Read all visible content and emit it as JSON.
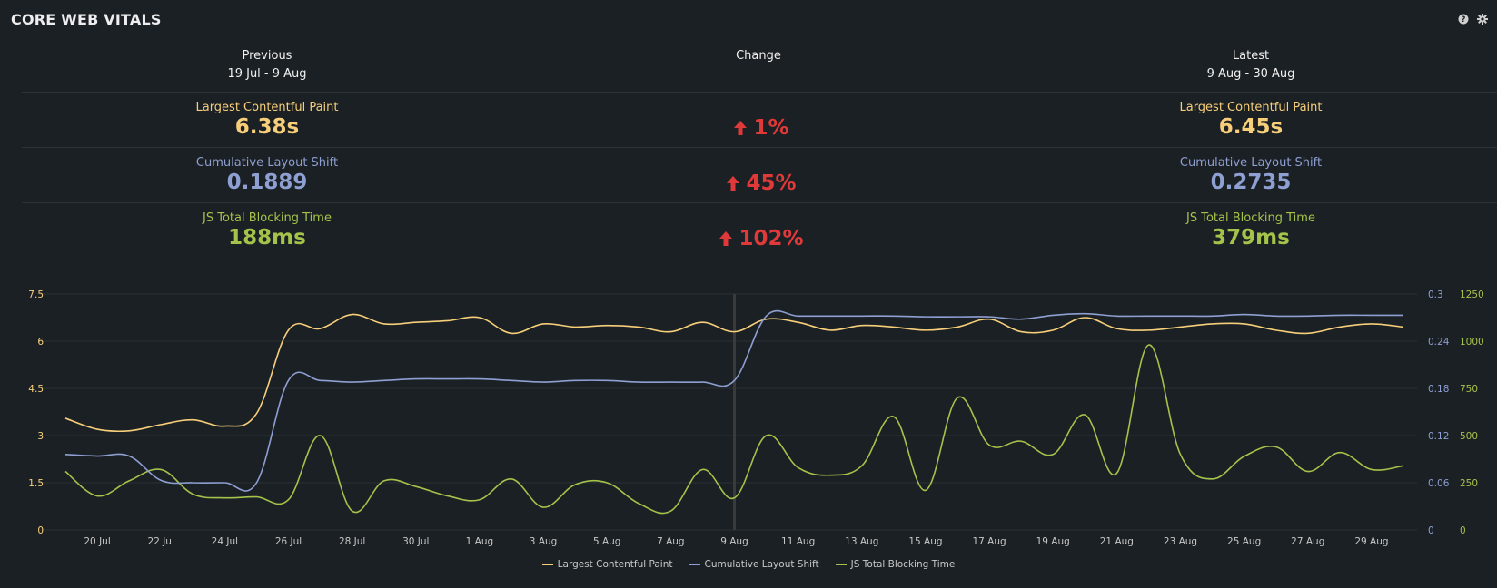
{
  "header": {
    "title": "CORE WEB VITALS",
    "icons": [
      "help-icon",
      "gear-icon"
    ]
  },
  "columns": {
    "previous": {
      "label": "Previous",
      "range": "19 Jul - 9 Aug"
    },
    "change": {
      "label": "Change"
    },
    "latest": {
      "label": "Latest",
      "range": "9 Aug - 30 Aug"
    }
  },
  "metrics": [
    {
      "label": "Largest Contentful Paint",
      "previous": "6.38s",
      "latest": "6.45s",
      "change": "1%",
      "color": "#f7cf7a"
    },
    {
      "label": "Cumulative Layout Shift",
      "previous": "0.1889",
      "latest": "0.2735",
      "change": "45%",
      "color": "#8e9fd2"
    },
    {
      "label": "JS Total Blocking Time",
      "previous": "188ms",
      "latest": "379ms",
      "change": "102%",
      "color": "#a5c24a"
    }
  ],
  "colors": {
    "background": "#1b2024",
    "change": "#e0393a",
    "marker": "#3a3a3a",
    "grid": "#2a3035"
  },
  "chart_data": {
    "type": "line",
    "x": [
      "19 Jul",
      "20 Jul",
      "21 Jul",
      "22 Jul",
      "23 Jul",
      "24 Jul",
      "25 Jul",
      "26 Jul",
      "27 Jul",
      "28 Jul",
      "29 Jul",
      "30 Jul",
      "31 Jul",
      "1 Aug",
      "2 Aug",
      "3 Aug",
      "4 Aug",
      "5 Aug",
      "6 Aug",
      "7 Aug",
      "8 Aug",
      "9 Aug",
      "10 Aug",
      "11 Aug",
      "12 Aug",
      "13 Aug",
      "14 Aug",
      "15 Aug",
      "16 Aug",
      "17 Aug",
      "18 Aug",
      "19 Aug",
      "20 Aug",
      "21 Aug",
      "22 Aug",
      "23 Aug",
      "24 Aug",
      "25 Aug",
      "26 Aug",
      "27 Aug",
      "28 Aug",
      "29 Aug",
      "30 Aug"
    ],
    "x_tick_labels": [
      "20 Jul",
      "22 Jul",
      "24 Jul",
      "26 Jul",
      "28 Jul",
      "30 Jul",
      "1 Aug",
      "3 Aug",
      "5 Aug",
      "7 Aug",
      "9 Aug",
      "11 Aug",
      "13 Aug",
      "15 Aug",
      "17 Aug",
      "19 Aug",
      "21 Aug",
      "23 Aug",
      "25 Aug",
      "27 Aug",
      "29 Aug"
    ],
    "marker": "9 Aug",
    "series": [
      {
        "name": "Largest Contentful Paint",
        "axis": "left",
        "color": "#f7cf7a",
        "values": [
          3.55,
          3.2,
          3.15,
          3.35,
          3.5,
          3.3,
          3.7,
          6.35,
          6.4,
          6.85,
          6.55,
          6.6,
          6.65,
          6.75,
          6.25,
          6.55,
          6.45,
          6.5,
          6.45,
          6.3,
          6.6,
          6.3,
          6.7,
          6.6,
          6.35,
          6.5,
          6.45,
          6.35,
          6.45,
          6.7,
          6.3,
          6.35,
          6.75,
          6.4,
          6.35,
          6.45,
          6.55,
          6.55,
          6.35,
          6.25,
          6.45,
          6.55,
          6.45
        ]
      },
      {
        "name": "Cumulative Layout Shift",
        "axis": "right1",
        "color": "#8e9fd2",
        "values": [
          0.096,
          0.094,
          0.094,
          0.063,
          0.06,
          0.06,
          0.06,
          0.19,
          0.19,
          0.188,
          0.19,
          0.192,
          0.192,
          0.192,
          0.19,
          0.188,
          0.19,
          0.19,
          0.188,
          0.188,
          0.188,
          0.19,
          0.272,
          0.272,
          0.272,
          0.272,
          0.272,
          0.271,
          0.271,
          0.271,
          0.268,
          0.273,
          0.275,
          0.272,
          0.272,
          0.272,
          0.272,
          0.274,
          0.272,
          0.272,
          0.273,
          0.273,
          0.273
        ]
      },
      {
        "name": "JS Total Blocking Time",
        "axis": "right2",
        "color": "#a5c24a",
        "values": [
          310,
          180,
          260,
          320,
          190,
          170,
          175,
          160,
          500,
          100,
          260,
          230,
          180,
          160,
          270,
          120,
          240,
          250,
          140,
          100,
          320,
          170,
          500,
          330,
          290,
          340,
          600,
          210,
          700,
          450,
          470,
          400,
          610,
          300,
          980,
          400,
          270,
          390,
          440,
          310,
          410,
          320,
          340
        ]
      }
    ],
    "axes": {
      "left": {
        "ticks": [
          "0",
          "1.5",
          "3",
          "4.5",
          "6",
          "7.5"
        ],
        "ylim": [
          0,
          7.5
        ]
      },
      "right1": {
        "ticks": [
          "0",
          "0.06",
          "0.12",
          "0.18",
          "0.24",
          "0.3"
        ],
        "ylim": [
          0,
          0.3
        ]
      },
      "right2": {
        "ticks": [
          "0",
          "250",
          "500",
          "750",
          "1000",
          "1250"
        ],
        "ylim": [
          0,
          1250
        ]
      }
    },
    "grid": true,
    "legend": "bottom-center"
  }
}
